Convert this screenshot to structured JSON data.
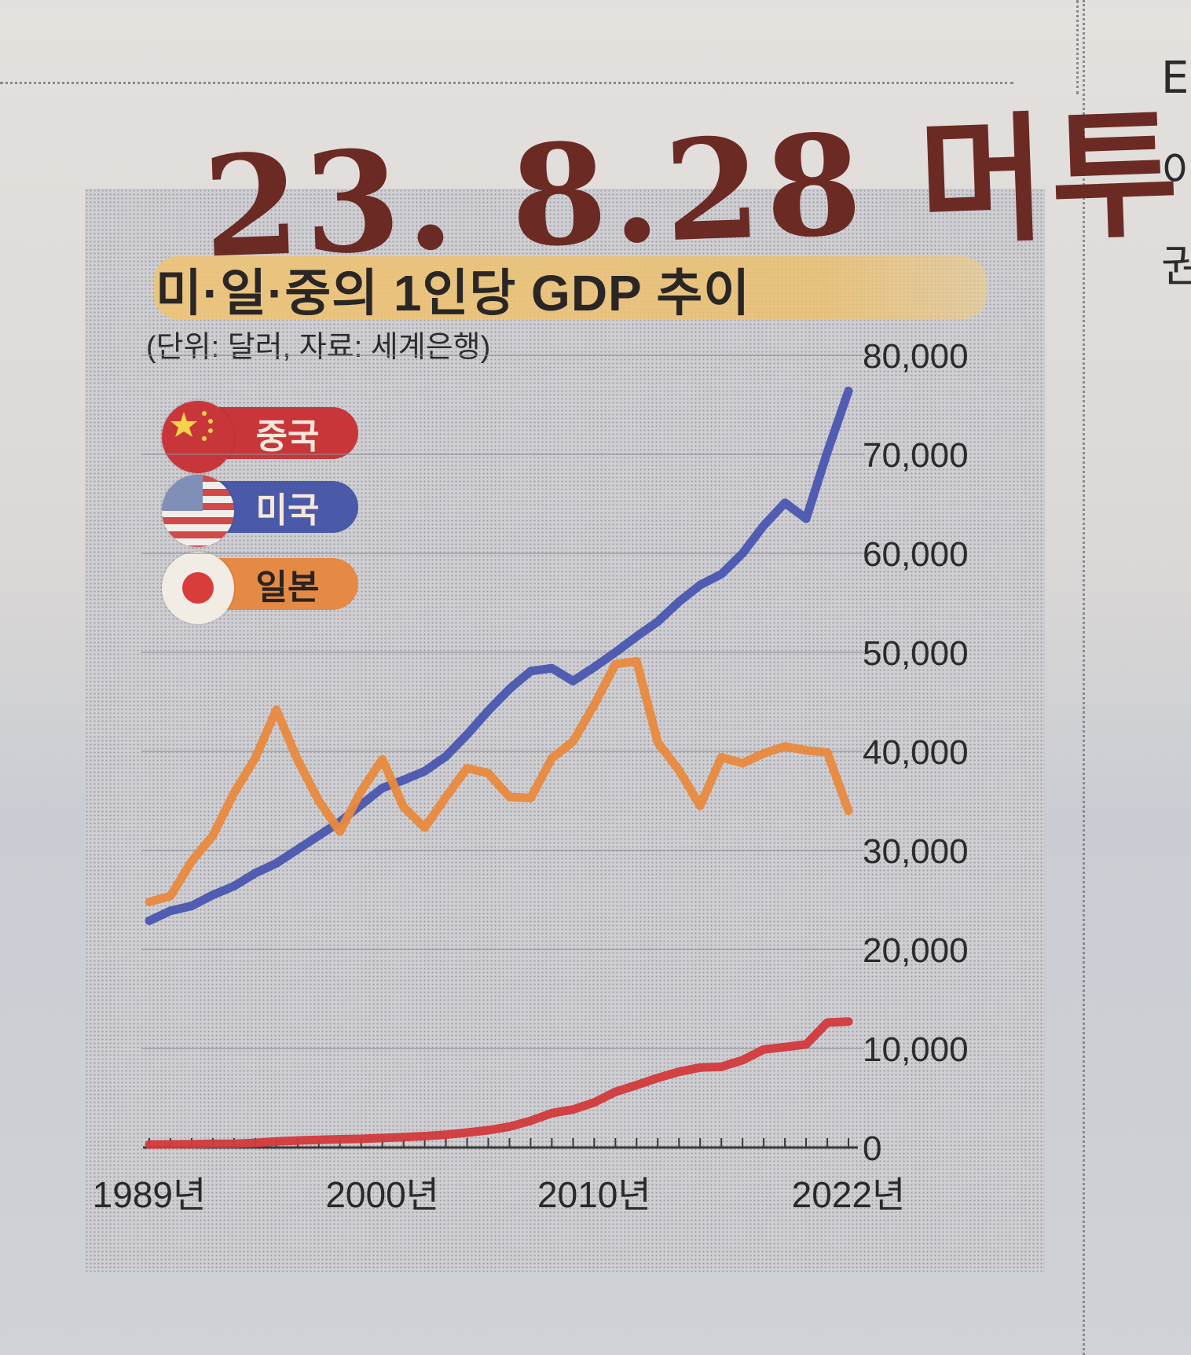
{
  "annotation": {
    "handwritten_note": "23. 8.28 머투"
  },
  "side_text": [
    "E",
    "이",
    "권"
  ],
  "chart_data": {
    "type": "line",
    "title": "미·일·중의 1인당 GDP 추이",
    "subtitle": "(단위: 달러, 자료: 세계은행)",
    "xlabel": "",
    "ylabel": "",
    "x_tick_labels": [
      "1989년",
      "2000년",
      "2010년",
      "2022년"
    ],
    "x_tick_years": [
      1989,
      2000,
      2010,
      2022
    ],
    "x_range": [
      1989,
      2022
    ],
    "y_tick_labels": [
      "0",
      "10,000",
      "20,000",
      "30,000",
      "40,000",
      "50,000",
      "60,000",
      "70,000",
      "80,000"
    ],
    "y_ticks": [
      0,
      10000,
      20000,
      30000,
      40000,
      50000,
      60000,
      70000,
      80000
    ],
    "ylim": [
      0,
      80000
    ],
    "axis_position": "right",
    "grid": true,
    "legend_position": "top-left",
    "x": [
      1989,
      1990,
      1991,
      1992,
      1993,
      1994,
      1995,
      1996,
      1997,
      1998,
      1999,
      2000,
      2001,
      2002,
      2003,
      2004,
      2005,
      2006,
      2007,
      2008,
      2009,
      2010,
      2011,
      2012,
      2013,
      2014,
      2015,
      2016,
      2017,
      2018,
      2019,
      2020,
      2021,
      2022
    ],
    "series": [
      {
        "name": "중국",
        "color": "#d2393c",
        "flag": "china-flag-icon",
        "values": [
          310,
          320,
          330,
          370,
          380,
          470,
          610,
          710,
          780,
          830,
          870,
          960,
          1050,
          1150,
          1290,
          1510,
          1750,
          2100,
          2700,
          3470,
          3830,
          4550,
          5620,
          6300,
          7020,
          7640,
          8070,
          8150,
          8820,
          9900,
          10140,
          10410,
          12620,
          12720
        ]
      },
      {
        "name": "미국",
        "color": "#4a56b0",
        "flag": "usa-flag-icon",
        "values": [
          22900,
          23900,
          24400,
          25500,
          26400,
          27700,
          28700,
          30100,
          31500,
          32900,
          34600,
          36300,
          37100,
          38000,
          39500,
          41700,
          44100,
          46300,
          48100,
          48400,
          47100,
          48500,
          50000,
          51600,
          53100,
          55100,
          56800,
          57900,
          60000,
          62800,
          65100,
          63500,
          70200,
          76400
        ]
      },
      {
        "name": "일본",
        "color": "#e8893e",
        "flag": "japan-flag-icon",
        "values": [
          24800,
          25400,
          28900,
          31500,
          35800,
          39300,
          44200,
          39150,
          35000,
          31900,
          36000,
          39200,
          34400,
          32300,
          35400,
          38300,
          37800,
          35400,
          35300,
          39300,
          41000,
          44700,
          48800,
          49100,
          40900,
          38100,
          34500,
          39400,
          38800,
          39800,
          40500,
          40100,
          39900,
          34000
        ]
      }
    ]
  }
}
